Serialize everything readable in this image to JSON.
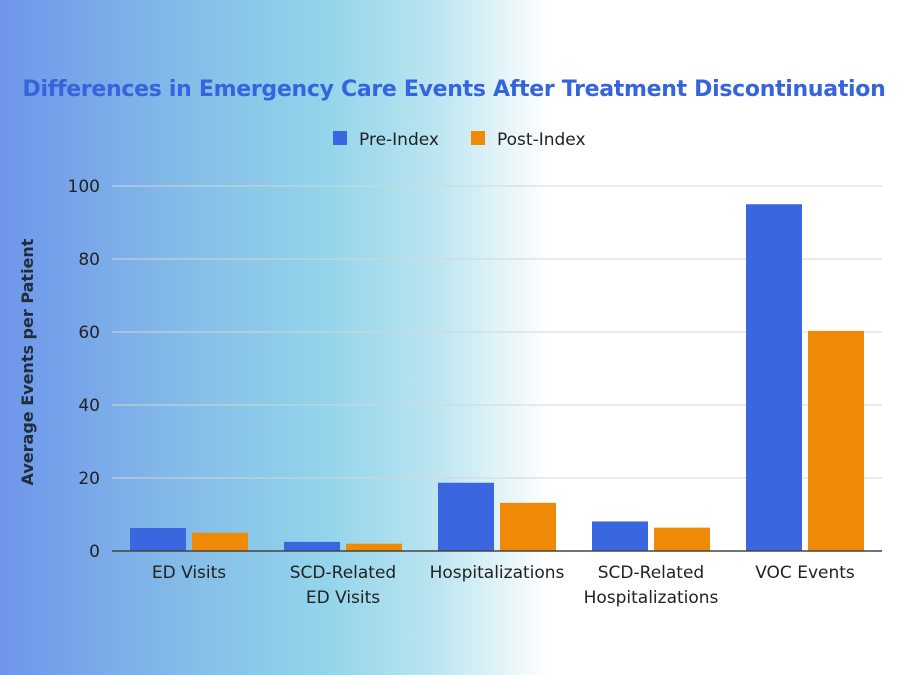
{
  "colors": {
    "title": "#3664dd",
    "pre": "#3a67df",
    "post": "#ee8a05",
    "grid": "#d5d5d5",
    "axis": "#444444"
  },
  "chart_data": {
    "type": "bar",
    "title": "Differences in Emergency Care Events After Treatment Discontinuation",
    "xlabel": "",
    "ylabel": "Average Events per Patient",
    "ylim": [
      0,
      100
    ],
    "yticks": [
      0,
      20,
      40,
      60,
      80,
      100
    ],
    "grid": true,
    "legend_position": "top-center",
    "categories": [
      [
        "ED Visits"
      ],
      [
        "SCD-Related",
        "ED Visits"
      ],
      [
        "Hospitalizations"
      ],
      [
        "SCD-Related",
        "Hospitalizations"
      ],
      [
        "VOC Events"
      ]
    ],
    "series": [
      {
        "name": "Pre-Index",
        "values": [
          6.3,
          2.5,
          18.7,
          8.1,
          95.0
        ]
      },
      {
        "name": "Post-Index",
        "values": [
          5.0,
          2.0,
          13.2,
          6.4,
          60.3
        ]
      }
    ]
  }
}
